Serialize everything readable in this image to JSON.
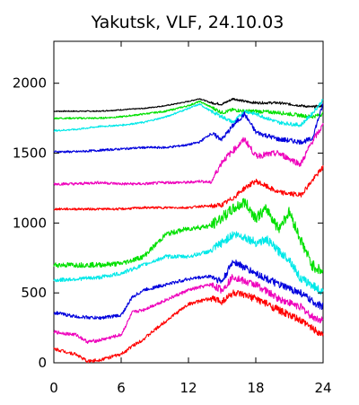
{
  "chart_data": {
    "type": "line",
    "title": "Yakutsk, VLF, 24.10.03",
    "xlabel": "",
    "ylabel": "",
    "xlim": [
      0,
      24
    ],
    "ylim": [
      0,
      2300
    ],
    "x_ticks": [
      0,
      6,
      12,
      18,
      24
    ],
    "x_tick_labels": [
      "0",
      "6",
      "12",
      "18",
      "24"
    ],
    "y_ticks": [
      0,
      500,
      1000,
      1500,
      2000
    ],
    "y_tick_labels": [
      "0",
      "500",
      "1000",
      "1500",
      "2000"
    ],
    "grid": false,
    "series": [
      {
        "color": "#000000",
        "noise": 4,
        "x": [
          0,
          2,
          4,
          6,
          8,
          10,
          12,
          13,
          14,
          15,
          16,
          17,
          18,
          20,
          22,
          23,
          24
        ],
        "values": [
          1800,
          1800,
          1800,
          1810,
          1820,
          1840,
          1870,
          1890,
          1860,
          1850,
          1890,
          1870,
          1860,
          1860,
          1840,
          1830,
          1840
        ]
      },
      {
        "color": "#00e000",
        "noise": 6,
        "x": [
          0,
          2,
          4,
          6,
          8,
          10,
          12,
          13,
          14,
          15,
          16,
          17,
          18,
          20,
          22,
          23,
          24
        ],
        "values": [
          1750,
          1750,
          1750,
          1760,
          1780,
          1800,
          1840,
          1870,
          1830,
          1790,
          1810,
          1800,
          1800,
          1790,
          1770,
          1760,
          1780
        ]
      },
      {
        "color": "#00e8e8",
        "noise": 6,
        "x": [
          0,
          2,
          4,
          6,
          8,
          10,
          12,
          13,
          14,
          15,
          16,
          17,
          18,
          20,
          22,
          23,
          24
        ],
        "values": [
          1660,
          1670,
          1690,
          1700,
          1720,
          1760,
          1820,
          1850,
          1800,
          1760,
          1720,
          1800,
          1780,
          1720,
          1700,
          1780,
          1880
        ]
      },
      {
        "color": "#0000dd",
        "noise": 8,
        "x": [
          0,
          2,
          4,
          6,
          8,
          10,
          12,
          13,
          14,
          15,
          16,
          17,
          18,
          20,
          22,
          23,
          24
        ],
        "values": [
          1510,
          1510,
          1520,
          1530,
          1540,
          1540,
          1560,
          1580,
          1640,
          1600,
          1700,
          1780,
          1650,
          1600,
          1580,
          1600,
          1850
        ]
      },
      {
        "color": "#ee00bb",
        "noise": 10,
        "x": [
          0,
          2,
          4,
          6,
          8,
          10,
          12,
          13,
          14,
          15,
          16,
          17,
          18,
          20,
          22,
          23,
          24
        ],
        "values": [
          1280,
          1280,
          1290,
          1280,
          1280,
          1290,
          1290,
          1300,
          1290,
          1440,
          1520,
          1600,
          1480,
          1500,
          1420,
          1580,
          1700
        ]
      },
      {
        "color": "#ff0000",
        "noise": 8,
        "x": [
          0,
          2,
          4,
          6,
          8,
          10,
          12,
          13,
          14,
          15,
          16,
          17,
          18,
          20,
          22,
          23,
          24
        ],
        "values": [
          1100,
          1100,
          1100,
          1100,
          1110,
          1110,
          1110,
          1120,
          1120,
          1130,
          1180,
          1250,
          1300,
          1220,
          1200,
          1300,
          1400
        ]
      },
      {
        "color": "#00e000",
        "noise": 18,
        "x": [
          0,
          2,
          4,
          6,
          8,
          9,
          10,
          12,
          14,
          16,
          17,
          18,
          19,
          20,
          21,
          22,
          23,
          24
        ],
        "values": [
          700,
          700,
          700,
          710,
          760,
          840,
          920,
          960,
          980,
          1100,
          1150,
          1040,
          1100,
          960,
          1080,
          880,
          700,
          650
        ]
      },
      {
        "color": "#00e8e8",
        "noise": 14,
        "x": [
          0,
          2,
          4,
          6,
          8,
          10,
          12,
          14,
          16,
          17,
          18,
          19,
          20,
          21,
          22,
          23,
          24
        ],
        "values": [
          590,
          600,
          610,
          640,
          700,
          760,
          760,
          800,
          920,
          900,
          860,
          880,
          800,
          740,
          600,
          560,
          500
        ]
      },
      {
        "color": "#0000dd",
        "noise": 12,
        "x": [
          0,
          2,
          4,
          6,
          7,
          8,
          10,
          12,
          14,
          15,
          16,
          17,
          18,
          20,
          22,
          23,
          24
        ],
        "values": [
          360,
          330,
          320,
          340,
          470,
          520,
          560,
          600,
          620,
          580,
          730,
          680,
          640,
          560,
          500,
          440,
          400
        ]
      },
      {
        "color": "#ee00bb",
        "noise": 12,
        "x": [
          0,
          2,
          3,
          4,
          6,
          7,
          8,
          10,
          12,
          14,
          15,
          16,
          17,
          18,
          20,
          22,
          23,
          24
        ],
        "values": [
          220,
          200,
          150,
          160,
          200,
          360,
          380,
          450,
          520,
          560,
          520,
          620,
          580,
          560,
          460,
          400,
          330,
          300
        ]
      },
      {
        "color": "#ff0000",
        "noise": 12,
        "x": [
          0,
          2,
          3,
          4,
          6,
          7,
          8,
          10,
          12,
          14,
          15,
          16,
          17,
          18,
          20,
          22,
          23,
          24
        ],
        "values": [
          100,
          60,
          10,
          20,
          60,
          120,
          170,
          300,
          420,
          460,
          440,
          500,
          480,
          460,
          380,
          300,
          250,
          200
        ]
      }
    ]
  }
}
